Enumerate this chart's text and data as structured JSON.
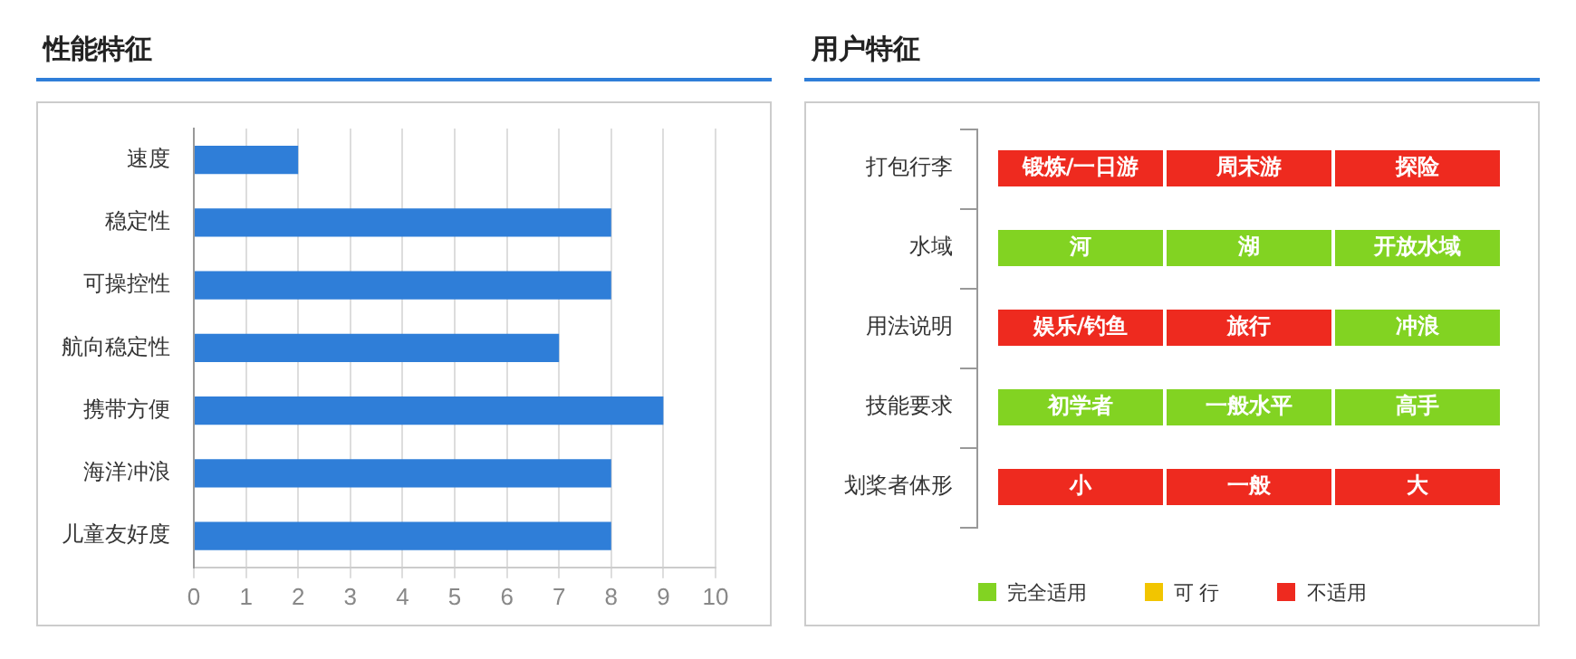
{
  "chart_data": [
    {
      "type": "bar",
      "title": "性能特征",
      "orientation": "horizontal",
      "categories": [
        "速度",
        "稳定性",
        "可操控性",
        "航向稳定性",
        "携带方便",
        "海洋冲浪",
        "儿童友好度"
      ],
      "values": [
        2,
        8,
        8,
        7,
        9,
        8,
        8
      ],
      "color": "#2f7ed8",
      "xlim": [
        0,
        10
      ],
      "xticks": [
        0,
        1,
        2,
        3,
        4,
        5,
        6,
        7,
        8,
        9,
        10
      ],
      "grid": "x"
    },
    {
      "type": "other",
      "title": "用户特征",
      "y_categories": [
        "打包行李",
        "水域",
        "用法说明",
        "技能要求",
        "划桨者体形"
      ],
      "cell_labels": [
        [
          "锻炼/一日游",
          "周末游",
          "探险"
        ],
        [
          "河",
          "湖",
          "开放水域"
        ],
        [
          "娱乐/钓鱼",
          "旅行",
          "冲浪"
        ],
        [
          "初学者",
          "一般水平",
          "高手"
        ],
        [
          "小",
          "一般",
          "大"
        ]
      ],
      "colors": [
        [
          "#ee2a1f",
          "#ee2a1f",
          "#ee2a1f"
        ],
        [
          "#82d322",
          "#82d322",
          "#82d322"
        ],
        [
          "#ee2a1f",
          "#ee2a1f",
          "#82d322"
        ],
        [
          "#82d322",
          "#82d322",
          "#82d322"
        ],
        [
          "#ee2a1f",
          "#ee2a1f",
          "#ee2a1f"
        ]
      ],
      "annotations": [
        "完全适用",
        "可 行",
        "不适用"
      ]
    }
  ]
}
